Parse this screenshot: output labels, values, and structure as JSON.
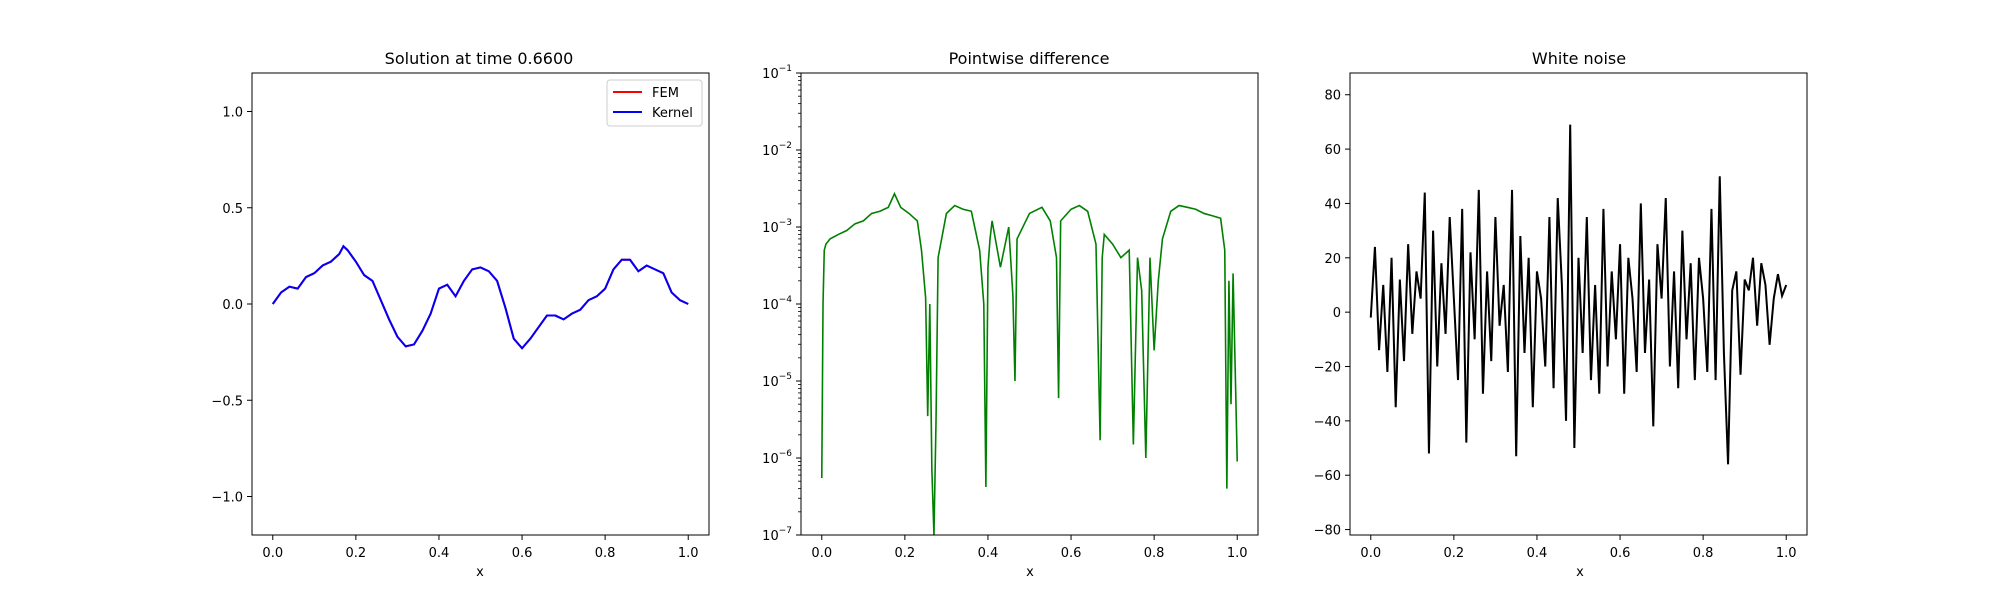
{
  "chart_data": [
    {
      "type": "line",
      "title": "Solution at time 0.6600",
      "xlabel": "x",
      "ylabel": "",
      "xlim": [
        -0.05,
        1.05
      ],
      "ylim": [
        -1.2,
        1.2
      ],
      "xticks": [
        0.0,
        0.2,
        0.4,
        0.6,
        0.8,
        1.0
      ],
      "xtick_labels": [
        "0.0",
        "0.2",
        "0.4",
        "0.6",
        "0.8",
        "1.0"
      ],
      "yticks": [
        -1.0,
        -0.5,
        0.0,
        0.5,
        1.0
      ],
      "ytick_labels": [
        "−1.0",
        "−0.5",
        "0.0",
        "0.5",
        "1.0"
      ],
      "legend": {
        "position": "upper right",
        "entries": [
          "FEM",
          "Kernel"
        ]
      },
      "colors": {
        "FEM": "#ff0000",
        "Kernel": "#0000ff"
      },
      "x": [
        0.0,
        0.02,
        0.04,
        0.06,
        0.08,
        0.1,
        0.12,
        0.14,
        0.16,
        0.17,
        0.18,
        0.2,
        0.22,
        0.24,
        0.26,
        0.28,
        0.3,
        0.32,
        0.34,
        0.36,
        0.38,
        0.4,
        0.42,
        0.44,
        0.46,
        0.48,
        0.5,
        0.52,
        0.54,
        0.56,
        0.58,
        0.6,
        0.62,
        0.64,
        0.66,
        0.68,
        0.7,
        0.72,
        0.74,
        0.76,
        0.78,
        0.8,
        0.82,
        0.84,
        0.86,
        0.88,
        0.9,
        0.92,
        0.94,
        0.96,
        0.98,
        1.0
      ],
      "series": [
        {
          "name": "FEM",
          "values": [
            0.0,
            0.06,
            0.09,
            0.08,
            0.14,
            0.16,
            0.2,
            0.22,
            0.26,
            0.3,
            0.28,
            0.22,
            0.15,
            0.12,
            0.02,
            -0.08,
            -0.17,
            -0.22,
            -0.21,
            -0.14,
            -0.05,
            0.08,
            0.1,
            0.04,
            0.12,
            0.18,
            0.19,
            0.17,
            0.12,
            -0.02,
            -0.18,
            -0.23,
            -0.18,
            -0.12,
            -0.06,
            -0.06,
            -0.08,
            -0.05,
            -0.03,
            0.02,
            0.04,
            0.08,
            0.18,
            0.23,
            0.23,
            0.17,
            0.2,
            0.18,
            0.16,
            0.06,
            0.02,
            0.0
          ]
        },
        {
          "name": "Kernel",
          "values": [
            0.0,
            0.06,
            0.09,
            0.08,
            0.14,
            0.16,
            0.2,
            0.22,
            0.26,
            0.3,
            0.28,
            0.22,
            0.15,
            0.12,
            0.02,
            -0.08,
            -0.17,
            -0.22,
            -0.21,
            -0.14,
            -0.05,
            0.08,
            0.1,
            0.04,
            0.12,
            0.18,
            0.19,
            0.17,
            0.12,
            -0.02,
            -0.18,
            -0.23,
            -0.18,
            -0.12,
            -0.06,
            -0.06,
            -0.08,
            -0.05,
            -0.03,
            0.02,
            0.04,
            0.08,
            0.18,
            0.23,
            0.23,
            0.17,
            0.2,
            0.18,
            0.16,
            0.06,
            0.02,
            0.0
          ]
        }
      ]
    },
    {
      "type": "line",
      "title": "Pointwise difference",
      "xlabel": "x",
      "ylabel": "",
      "yscale": "log",
      "xlim": [
        -0.05,
        1.05
      ],
      "ylim": [
        1e-07,
        0.1
      ],
      "xticks": [
        0.0,
        0.2,
        0.4,
        0.6,
        0.8,
        1.0
      ],
      "xtick_labels": [
        "0.0",
        "0.2",
        "0.4",
        "0.6",
        "0.8",
        "1.0"
      ],
      "yticks": [
        1e-07,
        1e-06,
        1e-05,
        0.0001,
        0.001,
        0.01,
        0.1
      ],
      "ytick_exponents": [
        "−7",
        "−6",
        "−5",
        "−4",
        "−3",
        "−2",
        "−1"
      ],
      "ytick_base": "10",
      "color": "#008000",
      "x": [
        0.0,
        0.003,
        0.006,
        0.01,
        0.02,
        0.04,
        0.06,
        0.08,
        0.1,
        0.12,
        0.14,
        0.16,
        0.175,
        0.19,
        0.21,
        0.23,
        0.24,
        0.25,
        0.255,
        0.26,
        0.265,
        0.27,
        0.275,
        0.28,
        0.3,
        0.32,
        0.34,
        0.36,
        0.38,
        0.39,
        0.395,
        0.4,
        0.405,
        0.41,
        0.43,
        0.45,
        0.46,
        0.465,
        0.47,
        0.5,
        0.53,
        0.55,
        0.565,
        0.57,
        0.575,
        0.6,
        0.62,
        0.64,
        0.66,
        0.67,
        0.675,
        0.68,
        0.7,
        0.72,
        0.74,
        0.75,
        0.76,
        0.77,
        0.78,
        0.79,
        0.8,
        0.81,
        0.82,
        0.84,
        0.86,
        0.88,
        0.9,
        0.92,
        0.94,
        0.96,
        0.97,
        0.975,
        0.98,
        0.985,
        0.99,
        0.995,
        1.0
      ],
      "values": [
        5.5e-07,
        0.0001,
        0.0005,
        0.0006,
        0.0007,
        0.0008,
        0.0009,
        0.0011,
        0.0012,
        0.0015,
        0.0016,
        0.0018,
        0.0027,
        0.0018,
        0.0015,
        0.0012,
        0.0005,
        0.00012,
        3.5e-06,
        0.0001,
        7e-07,
        1e-07,
        3e-06,
        0.0004,
        0.0015,
        0.0019,
        0.0017,
        0.0016,
        0.0005,
        0.0001,
        4.2e-07,
        0.0003,
        0.0007,
        0.0012,
        0.0003,
        0.001,
        0.00013,
        1e-05,
        0.0007,
        0.0015,
        0.0018,
        0.0012,
        0.0004,
        6e-06,
        0.0012,
        0.0017,
        0.0019,
        0.0016,
        0.0006,
        1.7e-06,
        0.0004,
        0.0008,
        0.0006,
        0.0004,
        0.0005,
        1.5e-06,
        0.0004,
        0.00015,
        1e-06,
        0.0004,
        2.5e-05,
        0.0002,
        0.0007,
        0.0016,
        0.0019,
        0.0018,
        0.0017,
        0.0015,
        0.0014,
        0.0013,
        0.0005,
        4e-07,
        0.0002,
        5e-06,
        0.00025,
        1.5e-05,
        9e-07
      ]
    },
    {
      "type": "line",
      "title": "White noise",
      "xlabel": "x",
      "ylabel": "",
      "xlim": [
        -0.05,
        1.05
      ],
      "ylim": [
        -82,
        88
      ],
      "xticks": [
        0.0,
        0.2,
        0.4,
        0.6,
        0.8,
        1.0
      ],
      "xtick_labels": [
        "0.0",
        "0.2",
        "0.4",
        "0.6",
        "0.8",
        "1.0"
      ],
      "yticks": [
        -80,
        -60,
        -40,
        -20,
        0,
        20,
        40,
        60,
        80
      ],
      "ytick_labels": [
        "−80",
        "−60",
        "−40",
        "−20",
        "0",
        "20",
        "40",
        "60",
        "80"
      ],
      "color": "#000000",
      "x": [
        0.0,
        0.01,
        0.02,
        0.03,
        0.04,
        0.05,
        0.06,
        0.07,
        0.08,
        0.09,
        0.1,
        0.11,
        0.12,
        0.13,
        0.14,
        0.15,
        0.16,
        0.17,
        0.18,
        0.19,
        0.2,
        0.21,
        0.22,
        0.23,
        0.24,
        0.25,
        0.26,
        0.27,
        0.28,
        0.29,
        0.3,
        0.31,
        0.32,
        0.33,
        0.34,
        0.35,
        0.36,
        0.37,
        0.38,
        0.39,
        0.4,
        0.41,
        0.42,
        0.43,
        0.44,
        0.45,
        0.46,
        0.47,
        0.48,
        0.49,
        0.5,
        0.51,
        0.52,
        0.53,
        0.54,
        0.55,
        0.56,
        0.57,
        0.58,
        0.59,
        0.6,
        0.61,
        0.62,
        0.63,
        0.64,
        0.65,
        0.66,
        0.67,
        0.68,
        0.69,
        0.7,
        0.71,
        0.72,
        0.73,
        0.74,
        0.75,
        0.76,
        0.77,
        0.78,
        0.79,
        0.8,
        0.81,
        0.82,
        0.83,
        0.84,
        0.85,
        0.86,
        0.87,
        0.88,
        0.89,
        0.9,
        0.91,
        0.92,
        0.93,
        0.94,
        0.95,
        0.96,
        0.97,
        0.98,
        0.99,
        1.0
      ],
      "values": [
        -2,
        24,
        -14,
        10,
        -22,
        20,
        -35,
        12,
        -18,
        25,
        -8,
        15,
        5,
        44,
        -52,
        30,
        -20,
        18,
        -8,
        35,
        5,
        -25,
        38,
        -48,
        22,
        -10,
        45,
        -30,
        15,
        -18,
        35,
        -5,
        10,
        -22,
        45,
        -53,
        28,
        -15,
        20,
        -35,
        15,
        5,
        -20,
        35,
        -28,
        42,
        10,
        -40,
        69,
        -50,
        20,
        -15,
        35,
        -25,
        10,
        -30,
        38,
        -20,
        15,
        -10,
        25,
        -30,
        20,
        5,
        -22,
        40,
        -15,
        12,
        -42,
        25,
        5,
        42,
        -20,
        15,
        -28,
        30,
        -10,
        18,
        -25,
        20,
        5,
        -22,
        38,
        -25,
        50,
        -15,
        -56,
        8,
        15,
        -23,
        12,
        8,
        20,
        -5,
        18,
        10,
        -12,
        5,
        14,
        6,
        10
      ]
    }
  ]
}
